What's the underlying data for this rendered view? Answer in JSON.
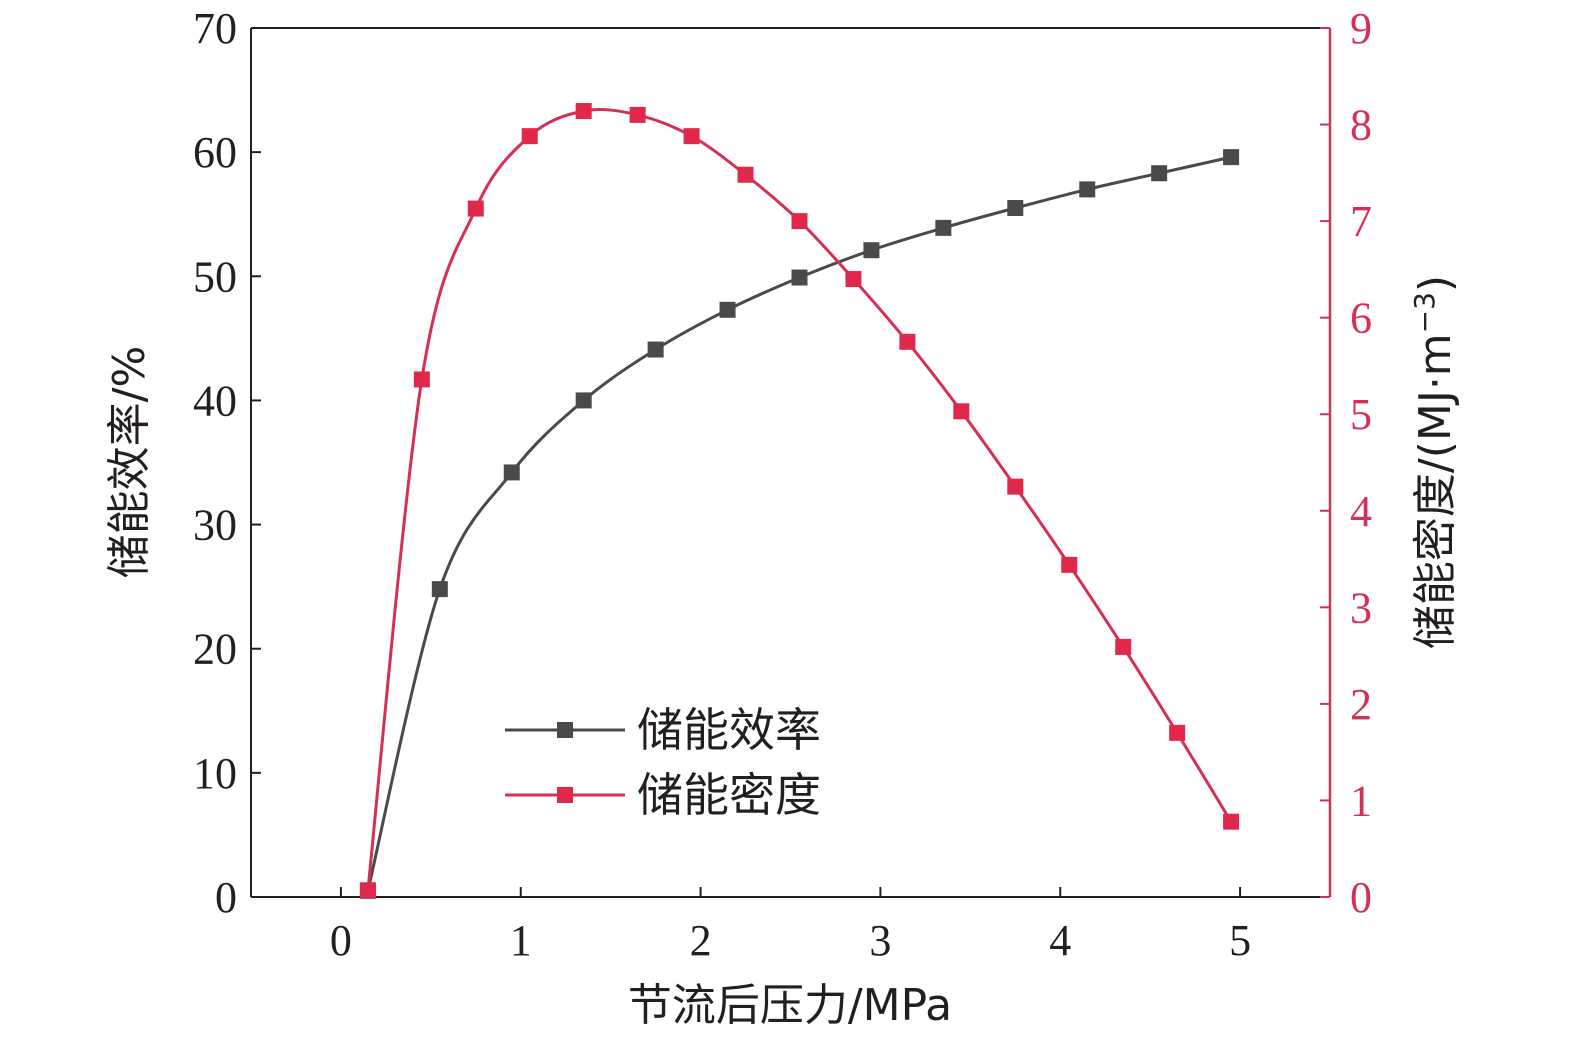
{
  "chart_data": {
    "type": "line",
    "title": "",
    "xlabel": "节流后压力/MPa",
    "ylabel_left": "储能效率/%",
    "ylabel_right": "储能密度/(MJ·m",
    "ylabel_right_sup": "−3",
    "ylabel_right_close": ")",
    "xlim": [
      -0.5,
      5.5
    ],
    "ylim_left": [
      0,
      70
    ],
    "ylim_right": [
      0,
      9
    ],
    "x_ticks": [
      0,
      1,
      2,
      3,
      4,
      5
    ],
    "y_left_ticks": [
      0,
      10,
      20,
      30,
      40,
      50,
      60,
      70
    ],
    "y_right_ticks": [
      0,
      1,
      2,
      3,
      4,
      5,
      6,
      7,
      8,
      9
    ],
    "grid": false,
    "legend_position": "center-bottom",
    "colors": {
      "efficiency": "#4a4a4a",
      "density": "#d62f55",
      "density_marker": "#e0294a",
      "axis": "#231f20"
    },
    "series": [
      {
        "name": "储能效率",
        "axis": "left",
        "x": [
          0.15,
          0.55,
          0.95,
          1.35,
          1.75,
          2.15,
          2.55,
          2.95,
          3.35,
          3.75,
          4.15,
          4.55,
          4.95
        ],
        "y": [
          0.5,
          24.8,
          34.2,
          40.0,
          44.1,
          47.3,
          49.9,
          52.1,
          53.9,
          55.5,
          57.0,
          58.3,
          59.6
        ]
      },
      {
        "name": "储能密度",
        "axis": "right",
        "x": [
          0.15,
          0.45,
          0.75,
          1.05,
          1.35,
          1.65,
          1.95,
          2.25,
          2.55,
          2.85,
          3.15,
          3.45,
          3.75,
          4.05,
          4.35,
          4.65,
          4.95
        ],
        "y": [
          0.07,
          5.36,
          7.13,
          7.88,
          8.14,
          8.1,
          7.88,
          7.48,
          7.0,
          6.4,
          5.75,
          5.03,
          4.25,
          3.44,
          2.59,
          1.7,
          0.78
        ]
      }
    ]
  }
}
